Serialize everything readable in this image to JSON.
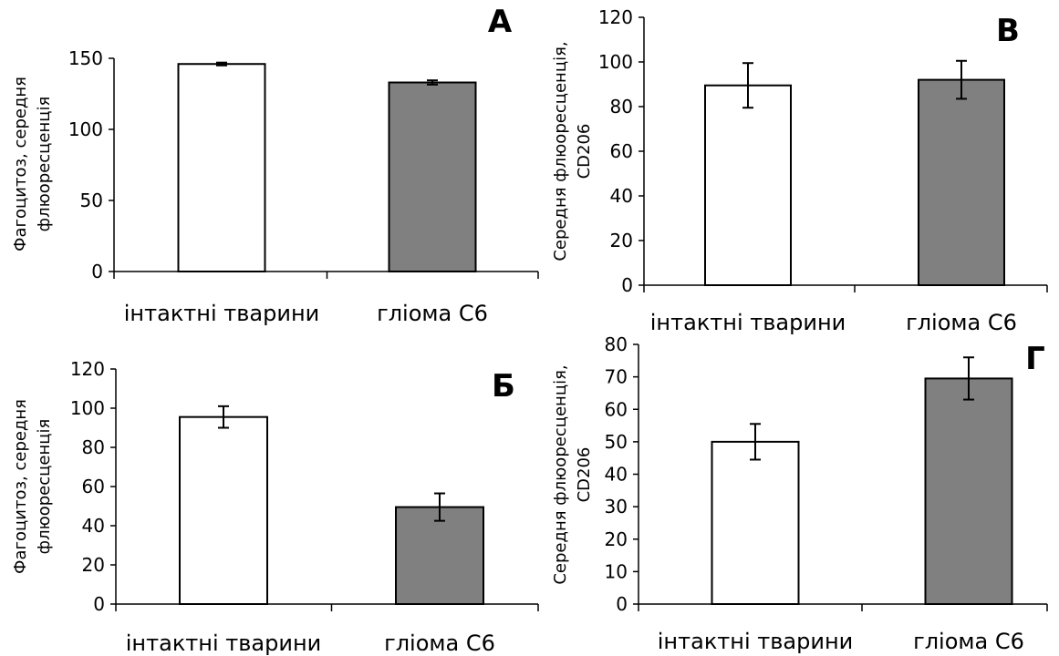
{
  "chart_data": [
    {
      "panel": "A",
      "type": "bar",
      "categories": [
        "інтактні тварини",
        "гліома С6"
      ],
      "values": [
        146,
        133
      ],
      "errors": [
        1,
        1.5
      ],
      "colors": [
        "#ffffff",
        "#808080"
      ],
      "ylabel_lines": [
        "Фагоцитоз, середня",
        "флюоресценція"
      ],
      "ylim": [
        0,
        150
      ],
      "yticks": [
        0,
        50,
        100,
        150
      ],
      "grid": false,
      "legend": "none"
    },
    {
      "panel": "B",
      "type": "bar",
      "categories": [
        "інтактні тварини",
        "гліома С6"
      ],
      "values": [
        89.5,
        92
      ],
      "errors": [
        10,
        8.5
      ],
      "colors": [
        "#ffffff",
        "#808080"
      ],
      "ylabel_lines": [
        "Середня флюоресценція,",
        "CD206"
      ],
      "ylim": [
        0,
        120
      ],
      "yticks": [
        0,
        20,
        40,
        60,
        80,
        100,
        120
      ],
      "grid": false,
      "legend": "none"
    },
    {
      "panel": "Б",
      "type": "bar",
      "categories": [
        "інтактні тварини",
        "гліома С6"
      ],
      "values": [
        95.5,
        49.5
      ],
      "errors": [
        5.5,
        7
      ],
      "colors": [
        "#ffffff",
        "#808080"
      ],
      "ylabel_lines": [
        "Фагоцитоз, середня",
        "флюоресценція"
      ],
      "ylim": [
        0,
        120
      ],
      "yticks": [
        0,
        20,
        40,
        60,
        80,
        100,
        120
      ],
      "grid": false,
      "legend": "none"
    },
    {
      "panel": "Г",
      "type": "bar",
      "categories": [
        "інтактні тварини",
        "гліома С6"
      ],
      "values": [
        50,
        69.5
      ],
      "errors": [
        5.5,
        6.5
      ],
      "colors": [
        "#ffffff",
        "#808080"
      ],
      "ylabel_lines": [
        "Середня флюоресценція,",
        "CD206"
      ],
      "ylim": [
        0,
        80
      ],
      "yticks": [
        0,
        10,
        20,
        30,
        40,
        50,
        60,
        70,
        80
      ],
      "grid": false,
      "legend": "none"
    }
  ]
}
